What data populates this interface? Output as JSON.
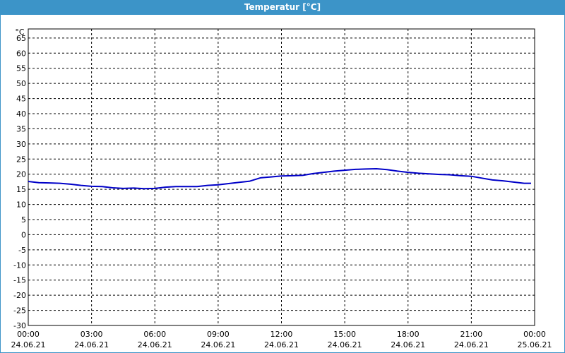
{
  "window": {
    "title": "Temperatur [°C]"
  },
  "chart_data": {
    "type": "line",
    "title": "Temperatur [°C]",
    "ylabel": "°C",
    "ylim": [
      -30,
      68
    ],
    "yticks": [
      65,
      60,
      55,
      50,
      45,
      40,
      35,
      30,
      25,
      20,
      15,
      10,
      5,
      0,
      -5,
      -10,
      -15,
      -20,
      -25,
      -30
    ],
    "xlim_hours": [
      0,
      24
    ],
    "xticks": [
      {
        "time": "00:00",
        "date": "24.06.21"
      },
      {
        "time": "03:00",
        "date": "24.06.21"
      },
      {
        "time": "06:00",
        "date": "24.06.21"
      },
      {
        "time": "09:00",
        "date": "24.06.21"
      },
      {
        "time": "12:00",
        "date": "24.06.21"
      },
      {
        "time": "15:00",
        "date": "24.06.21"
      },
      {
        "time": "18:00",
        "date": "24.06.21"
      },
      {
        "time": "21:00",
        "date": "24.06.21"
      },
      {
        "time": "00:00",
        "date": "25.06.21"
      }
    ],
    "grid": true,
    "line_color": "#0000c8",
    "series": [
      {
        "x": [
          "00:00",
          "00:30",
          "01:00",
          "01:30",
          "02:00",
          "02:30",
          "03:00",
          "03:30",
          "04:00",
          "04:30",
          "05:00",
          "05:30",
          "06:00",
          "06:30",
          "07:00",
          "07:30",
          "08:00",
          "08:30",
          "09:00",
          "09:30",
          "10:00",
          "10:30",
          "11:00",
          "11:30",
          "12:00",
          "12:30",
          "13:00",
          "13:30",
          "14:00",
          "14:30",
          "15:00",
          "15:30",
          "16:00",
          "16:30",
          "17:00",
          "17:30",
          "18:00",
          "18:30",
          "19:00",
          "19:30",
          "20:00",
          "20:30",
          "21:00",
          "21:30",
          "22:00",
          "22:30",
          "23:00",
          "23:30",
          "23:50"
        ],
        "values": [
          17.6,
          17.2,
          17.1,
          17.0,
          16.7,
          16.3,
          16.0,
          15.9,
          15.5,
          15.3,
          15.4,
          15.2,
          15.3,
          15.7,
          15.9,
          15.9,
          15.9,
          16.3,
          16.5,
          16.9,
          17.3,
          17.7,
          18.8,
          19.1,
          19.4,
          19.5,
          19.6,
          20.2,
          20.6,
          21.0,
          21.3,
          21.6,
          21.7,
          21.8,
          21.5,
          21.0,
          20.6,
          20.3,
          20.1,
          19.9,
          19.8,
          19.5,
          19.3,
          18.7,
          18.1,
          17.8,
          17.4,
          17.0,
          17.0
        ]
      }
    ]
  }
}
